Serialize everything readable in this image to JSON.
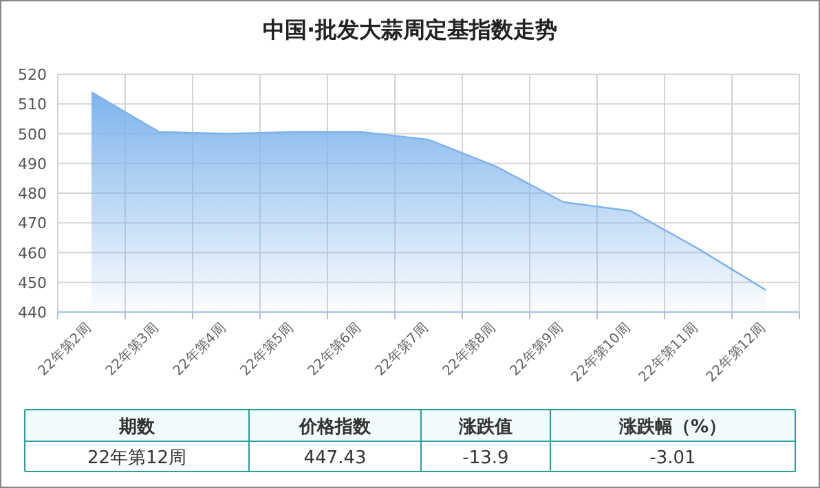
{
  "chart_data": {
    "type": "area",
    "title": "中国·批发大蒜周定基指数走势",
    "categories": [
      "22年第2周",
      "22年第3周",
      "22年第4周",
      "22年第5周",
      "22年第6周",
      "22年第7周",
      "22年第8周",
      "22年第9周",
      "22年第10周",
      "22年第11周",
      "22年第12周"
    ],
    "series": [
      {
        "color": "#7db3ec",
        "values": [
          514,
          500.6,
          500,
          500.6,
          500.6,
          498,
          489,
          477,
          474,
          461.3,
          447.43
        ]
      }
    ],
    "ylim": [
      440,
      520
    ],
    "yticks": [
      440,
      450,
      460,
      470,
      480,
      490,
      500,
      510,
      520
    ],
    "grid": true,
    "annotations": [
      "期数",
      "价格指数",
      "涨跌值",
      "涨跌幅（%）",
      "22年第12周",
      "447.43",
      "-13.9",
      "-3.01"
    ]
  }
}
